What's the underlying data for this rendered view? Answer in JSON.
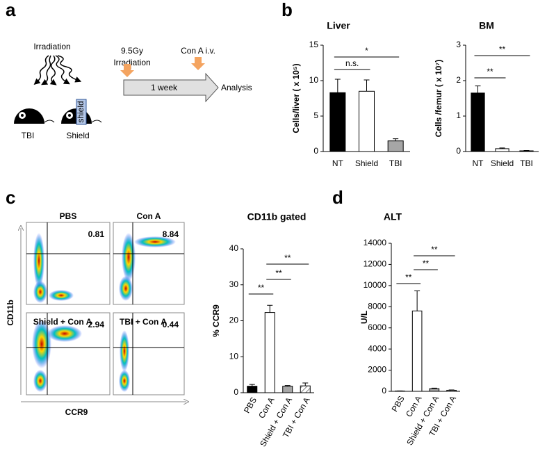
{
  "panels": [
    "a",
    "b",
    "c",
    "d"
  ],
  "diagram": {
    "irradiation": "Irradiation",
    "mice": [
      "TBI",
      "Shield"
    ],
    "shield_label": "shield",
    "dose": "9.5Gy",
    "dose_label": "Irradiation",
    "injection": "Con A i.v.",
    "duration": "1 week",
    "endpoint": "Analysis"
  },
  "flow": {
    "plots": [
      {
        "title": "PBS",
        "value": 0.81
      },
      {
        "title": "Con A",
        "value": 8.84
      },
      {
        "title": "Shield + Con A",
        "value": 2.94
      },
      {
        "title": "TBI + Con A",
        "value": 0.44
      }
    ],
    "x_label": "CCR9",
    "y_label": "CD11b"
  },
  "chart_data": [
    {
      "type": "bar",
      "title": "Liver",
      "y_label": "Cells/liver ( x 10⁵)",
      "categories": [
        "NT",
        "Shield",
        "TBI"
      ],
      "values": [
        8.3,
        8.5,
        1.5
      ],
      "errors": [
        1.9,
        1.6,
        0.3
      ],
      "colors": [
        "#000000",
        "#ffffff",
        "#a6a6a6"
      ],
      "hatch": [
        false,
        false,
        false
      ],
      "ylim": [
        0,
        15
      ],
      "yticks": [
        0,
        5,
        10,
        15
      ],
      "annotations": [
        "n.s.",
        "*"
      ]
    },
    {
      "type": "bar",
      "title": "BM",
      "y_label": "Cells /femur ( x 10⁷)",
      "categories": [
        "NT",
        "Shield",
        "TBI"
      ],
      "values": [
        1.65,
        0.08,
        0.02
      ],
      "errors": [
        0.2,
        0.02,
        0.01
      ],
      "colors": [
        "#000000",
        "#ffffff",
        "#a6a6a6"
      ],
      "hatch": [
        false,
        false,
        false
      ],
      "ylim": [
        0,
        3
      ],
      "yticks": [
        0,
        1,
        2,
        3
      ],
      "annotations": [
        "**",
        "**"
      ]
    },
    {
      "type": "bar",
      "title": "CD11b gated",
      "y_label": "% CCR9",
      "categories": [
        "PBS",
        "Con A",
        "Shield + Con A",
        "TBI + Con A"
      ],
      "values": [
        1.8,
        22.3,
        1.8,
        1.9
      ],
      "errors": [
        0.5,
        2,
        0.2,
        0.8
      ],
      "colors": [
        "#000000",
        "#ffffff",
        "#a6a6a6",
        "#ffffff"
      ],
      "hatch": [
        false,
        false,
        false,
        true
      ],
      "ylim": [
        0,
        40
      ],
      "yticks": [
        0,
        10,
        20,
        30,
        40
      ],
      "annotations": [
        "**",
        "**",
        "**"
      ]
    },
    {
      "type": "bar",
      "title": "ALT",
      "y_label": "U/L",
      "categories": [
        "PBS",
        "Con A",
        "Shield + Con A",
        "TBI + Con A"
      ],
      "values": [
        30,
        7600,
        250,
        100
      ],
      "errors": [
        10,
        1900,
        50,
        30
      ],
      "colors": [
        "#000000",
        "#ffffff",
        "#a6a6a6",
        "#ffffff"
      ],
      "hatch": [
        false,
        false,
        false,
        true
      ],
      "ylim": [
        0,
        14000
      ],
      "yticks": [
        0,
        2000,
        4000,
        6000,
        8000,
        10000,
        12000,
        14000
      ],
      "annotations": [
        "**",
        "**",
        "**"
      ]
    }
  ]
}
